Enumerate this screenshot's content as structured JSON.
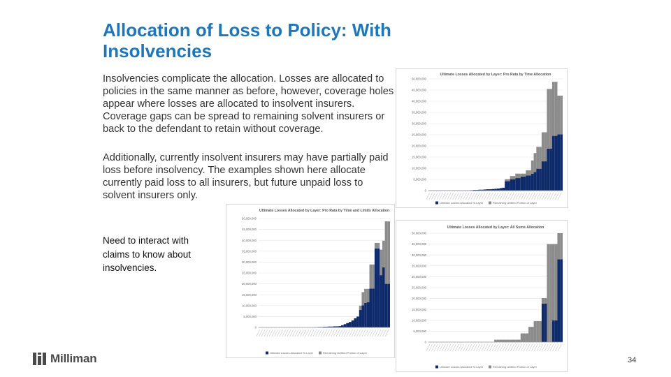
{
  "slide": {
    "title": "Allocation of Loss to Policy: With Insolvencies",
    "paragraph1": "Insolvencies complicate the allocation.  Losses are allocated to policies in the same manner as before, however, coverage holes appear where losses are allocated to insolvent insurers.  Coverage gaps can be spread to remaining solvent insurers or back to the defendant to retain without coverage.",
    "paragraph2": "Additionally, currently insolvent insurers may have partially paid loss before insolvency.  The examples shown here allocate currently paid loss to all insurers, but future unpaid loss to solvent insurers only.",
    "note": "Need to interact with claims to know about insolvencies.",
    "logo_text": "Milliman",
    "page_number": "34"
  },
  "colors": {
    "title": "#1f77b9",
    "allocated": "#0e2a6b",
    "remaining": "#8c8c8c"
  },
  "chart_data": [
    {
      "type": "bar",
      "title": "Ultimate Losses Allocated by Layer: Pro Rata by Time Allocation",
      "y_ticks": [
        "50,000,000",
        "45,000,000",
        "40,000,000",
        "35,000,000",
        "30,000,000",
        "25,000,000",
        "20,000,000",
        "15,000,000",
        "10,000,000",
        "5,000,000",
        "0"
      ],
      "ylim": [
        0,
        50000000
      ],
      "series": [
        {
          "name": "Ultimate Losses Allocated To Layer",
          "values": [
            100000,
            100000,
            100000,
            100000,
            100000,
            100000,
            100000,
            100000,
            100000,
            100000,
            100000,
            100000,
            100000,
            100000,
            100000,
            100000,
            200000,
            300000,
            300000,
            400000,
            400000,
            500000,
            600000,
            600000,
            700000,
            800000,
            900000,
            1100000,
            1300000,
            4200000,
            4200000,
            5000000,
            5000000,
            5600000,
            5600000,
            6300000,
            6300000,
            6800000,
            6800000,
            7500000,
            8300000,
            9800000,
            9800000,
            13100000,
            13100000,
            18800000,
            18800000,
            24500000,
            24500000,
            25200000,
            25200000
          ]
        },
        {
          "name": "Remaining Unfilled Portion of Layer",
          "values": [
            0,
            0,
            0,
            0,
            0,
            0,
            0,
            0,
            0,
            0,
            0,
            0,
            0,
            0,
            0,
            0,
            0,
            0,
            0,
            0,
            0,
            0,
            0,
            0,
            0,
            0,
            0,
            0,
            0,
            900000,
            900000,
            1500000,
            1500000,
            2000000,
            2000000,
            1300000,
            1300000,
            2300000,
            2300000,
            6000000,
            8500000,
            9800000,
            9800000,
            13000000,
            13000000,
            26700000,
            26700000,
            24200000,
            24200000,
            17300000,
            17300000
          ]
        }
      ],
      "legend": [
        "Ultimate Losses Allocated To Layer",
        "Remaining Unfilled Portion of Layer"
      ]
    },
    {
      "type": "bar",
      "title": "Ultimate Losses Allocated by Layer: Pro Rata by Time and Limits Allocation",
      "y_ticks": [
        "50,000,000",
        "45,000,000",
        "40,000,000",
        "35,000,000",
        "30,000,000",
        "25,000,000",
        "20,000,000",
        "15,000,000",
        "10,000,000",
        "5,000,000",
        "0"
      ],
      "ylim": [
        0,
        50000000
      ],
      "series": [
        {
          "name": "Ultimate Losses Allocated To Layer",
          "values": [
            0,
            0,
            0,
            0,
            0,
            0,
            0,
            0,
            0,
            0,
            0,
            0,
            0,
            0,
            0,
            0,
            0,
            0,
            0,
            0,
            0,
            100000,
            100000,
            200000,
            200000,
            300000,
            300000,
            400000,
            400000,
            500000,
            500000,
            600000,
            1000000,
            1500000,
            2000000,
            2500000,
            3200000,
            4200000,
            5000000,
            8000000,
            10100000,
            11300000,
            11600000,
            17800000,
            17800000,
            36200000,
            36200000,
            24000000,
            27600000,
            20000000,
            20000000
          ]
        },
        {
          "name": "Remaining Unfilled Portion of Layer",
          "values": [
            0,
            0,
            0,
            0,
            0,
            0,
            0,
            0,
            0,
            0,
            0,
            0,
            0,
            0,
            0,
            0,
            0,
            0,
            0,
            0,
            0,
            0,
            0,
            0,
            0,
            0,
            0,
            0,
            0,
            0,
            0,
            0,
            0,
            0,
            0,
            0,
            0,
            0,
            0,
            2000000,
            6100000,
            6400000,
            6100000,
            11100000,
            11100000,
            2600000,
            2600000,
            11700000,
            12200000,
            28700000,
            28700000
          ]
        }
      ],
      "legend": [
        "Ultimate Losses Allocated To Layer",
        "Remaining Unfilled Portion of Layer"
      ]
    },
    {
      "type": "bar",
      "title": "Ultimate Losses Allocated by Layer: All Sums Allocation",
      "y_ticks": [
        "50,000,000",
        "45,000,000",
        "40,000,000",
        "35,000,000",
        "30,000,000",
        "25,000,000",
        "20,000,000",
        "15,000,000",
        "10,000,000",
        "5,000,000",
        "0"
      ],
      "ylim": [
        0,
        50000000
      ],
      "series": [
        {
          "name": "Ultimate Losses Allocated To Layer",
          "values": [
            0,
            0,
            0,
            0,
            0,
            0,
            0,
            0,
            0,
            0,
            0,
            0,
            0,
            0,
            0,
            0,
            0,
            0,
            0,
            0,
            0,
            0,
            0,
            0,
            0,
            0,
            0,
            0,
            0,
            0,
            0,
            0,
            0,
            0,
            0,
            0,
            0,
            0,
            0,
            0,
            0,
            0,
            0,
            17700000,
            17700000,
            0,
            0,
            10000000,
            10000000,
            38000000,
            38000000
          ]
        },
        {
          "name": "Remaining Unfilled Portion of Layer",
          "values": [
            0,
            0,
            0,
            0,
            0,
            0,
            0,
            0,
            0,
            0,
            0,
            0,
            0,
            0,
            0,
            0,
            0,
            0,
            0,
            0,
            0,
            0,
            0,
            0,
            0,
            1100000,
            1100000,
            1100000,
            1100000,
            1100000,
            1100000,
            1100000,
            1100000,
            1100000,
            1100000,
            4000000,
            4000000,
            4000000,
            7000000,
            7000000,
            9600000,
            9600000,
            9600000,
            2500000,
            2500000,
            45000000,
            45000000,
            35000000,
            35000000,
            12000000,
            12000000
          ]
        }
      ],
      "legend": [
        "Ultimate Losses Allocated To Layer",
        "Remaining Unfilled Portion of Layer"
      ]
    }
  ]
}
